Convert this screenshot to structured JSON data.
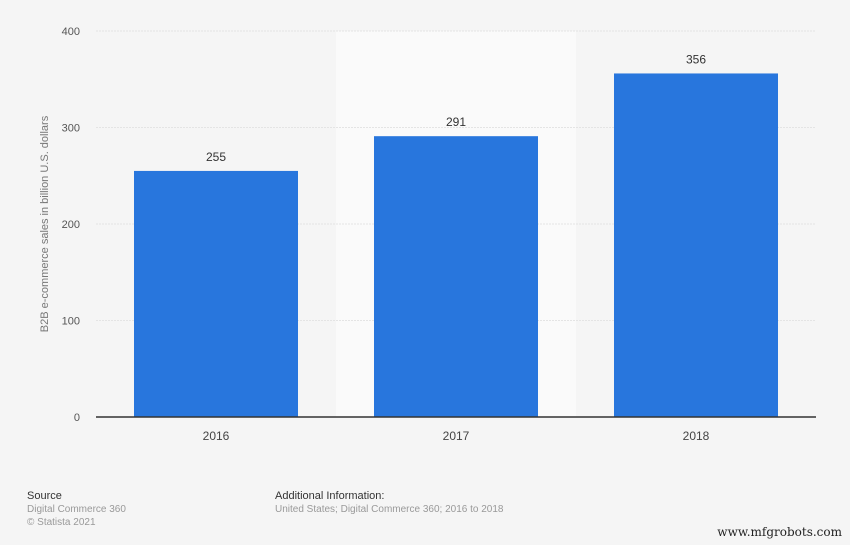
{
  "chart_data": {
    "type": "bar",
    "categories": [
      "2016",
      "2017",
      "2018"
    ],
    "values": [
      255,
      291,
      356
    ],
    "data_labels": [
      "255",
      "291",
      "356"
    ],
    "title": "",
    "xlabel": "",
    "ylabel": "B2B e-commerce sales in billion U.S. dollars",
    "ylim": [
      0,
      400
    ],
    "yticks": [
      0,
      100,
      200,
      300,
      400
    ],
    "grid": true,
    "highlighted_category": "2017",
    "bar_color": "#2876dd"
  },
  "footer": {
    "source_heading": "Source",
    "source_lines": [
      "Digital Commerce 360",
      "© Statista 2021"
    ],
    "additional_heading": "Additional Information:",
    "additional_text": "United States; Digital Commerce 360; 2016 to 2018"
  },
  "watermark": "www.mfgrobots.com"
}
